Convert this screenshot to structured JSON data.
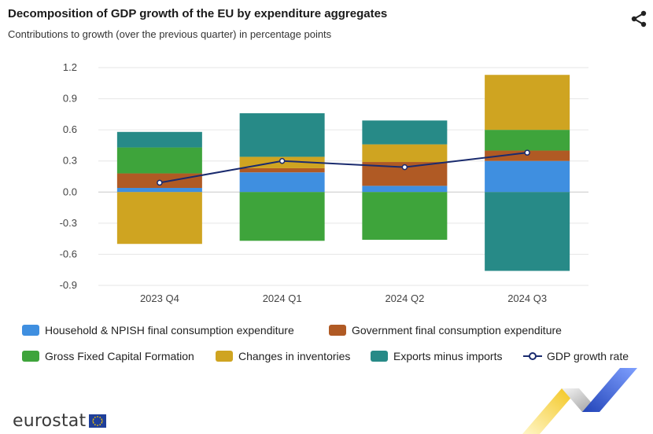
{
  "header": {
    "title": "Decomposition of GDP growth of the EU by expenditure aggregates",
    "subtitle": "Contributions to growth (over the previous quarter) in percentage points"
  },
  "share_icon": "share-icon",
  "logo": {
    "text": "eurostat"
  },
  "legend": {
    "items": [
      "Household & NPISH final consumption expenditure",
      "Government final consumption expenditure",
      "Gross Fixed Capital Formation",
      "Changes in inventories",
      "Exports minus imports",
      "GDP growth rate"
    ]
  },
  "chart_data": {
    "type": "bar",
    "stacked": true,
    "categories": [
      "2023 Q4",
      "2024 Q1",
      "2024 Q2",
      "2024 Q3"
    ],
    "ylim": [
      -0.9,
      1.2
    ],
    "yticks": [
      "1.2",
      "0.9",
      "0.6",
      "0.3",
      "0.0",
      "-0.3",
      "-0.6",
      "-0.9"
    ],
    "ytick_values": [
      1.2,
      0.9,
      0.6,
      0.3,
      0.0,
      -0.3,
      -0.6,
      -0.9
    ],
    "grid": true,
    "legend_position": "bottom",
    "series": [
      {
        "name": "Household & NPISH final consumption expenditure",
        "color": "#3f8fe0",
        "values": [
          0.04,
          0.19,
          0.06,
          0.3
        ]
      },
      {
        "name": "Government final consumption expenditure",
        "color": "#b05a24",
        "values": [
          0.14,
          0.04,
          0.23,
          0.1
        ]
      },
      {
        "name": "Gross Fixed Capital Formation",
        "color": "#3ea43b",
        "values": [
          0.25,
          -0.47,
          -0.46,
          0.2
        ]
      },
      {
        "name": "Changes in inventories",
        "color": "#cfa421",
        "values": [
          -0.5,
          0.11,
          0.17,
          0.53
        ]
      },
      {
        "name": "Exports minus imports",
        "color": "#278a87",
        "values": [
          0.15,
          0.42,
          0.23,
          -0.76
        ]
      }
    ],
    "line": {
      "name": "GDP growth rate",
      "color": "#1a2b6e",
      "values": [
        0.09,
        0.3,
        0.24,
        0.38
      ]
    }
  }
}
